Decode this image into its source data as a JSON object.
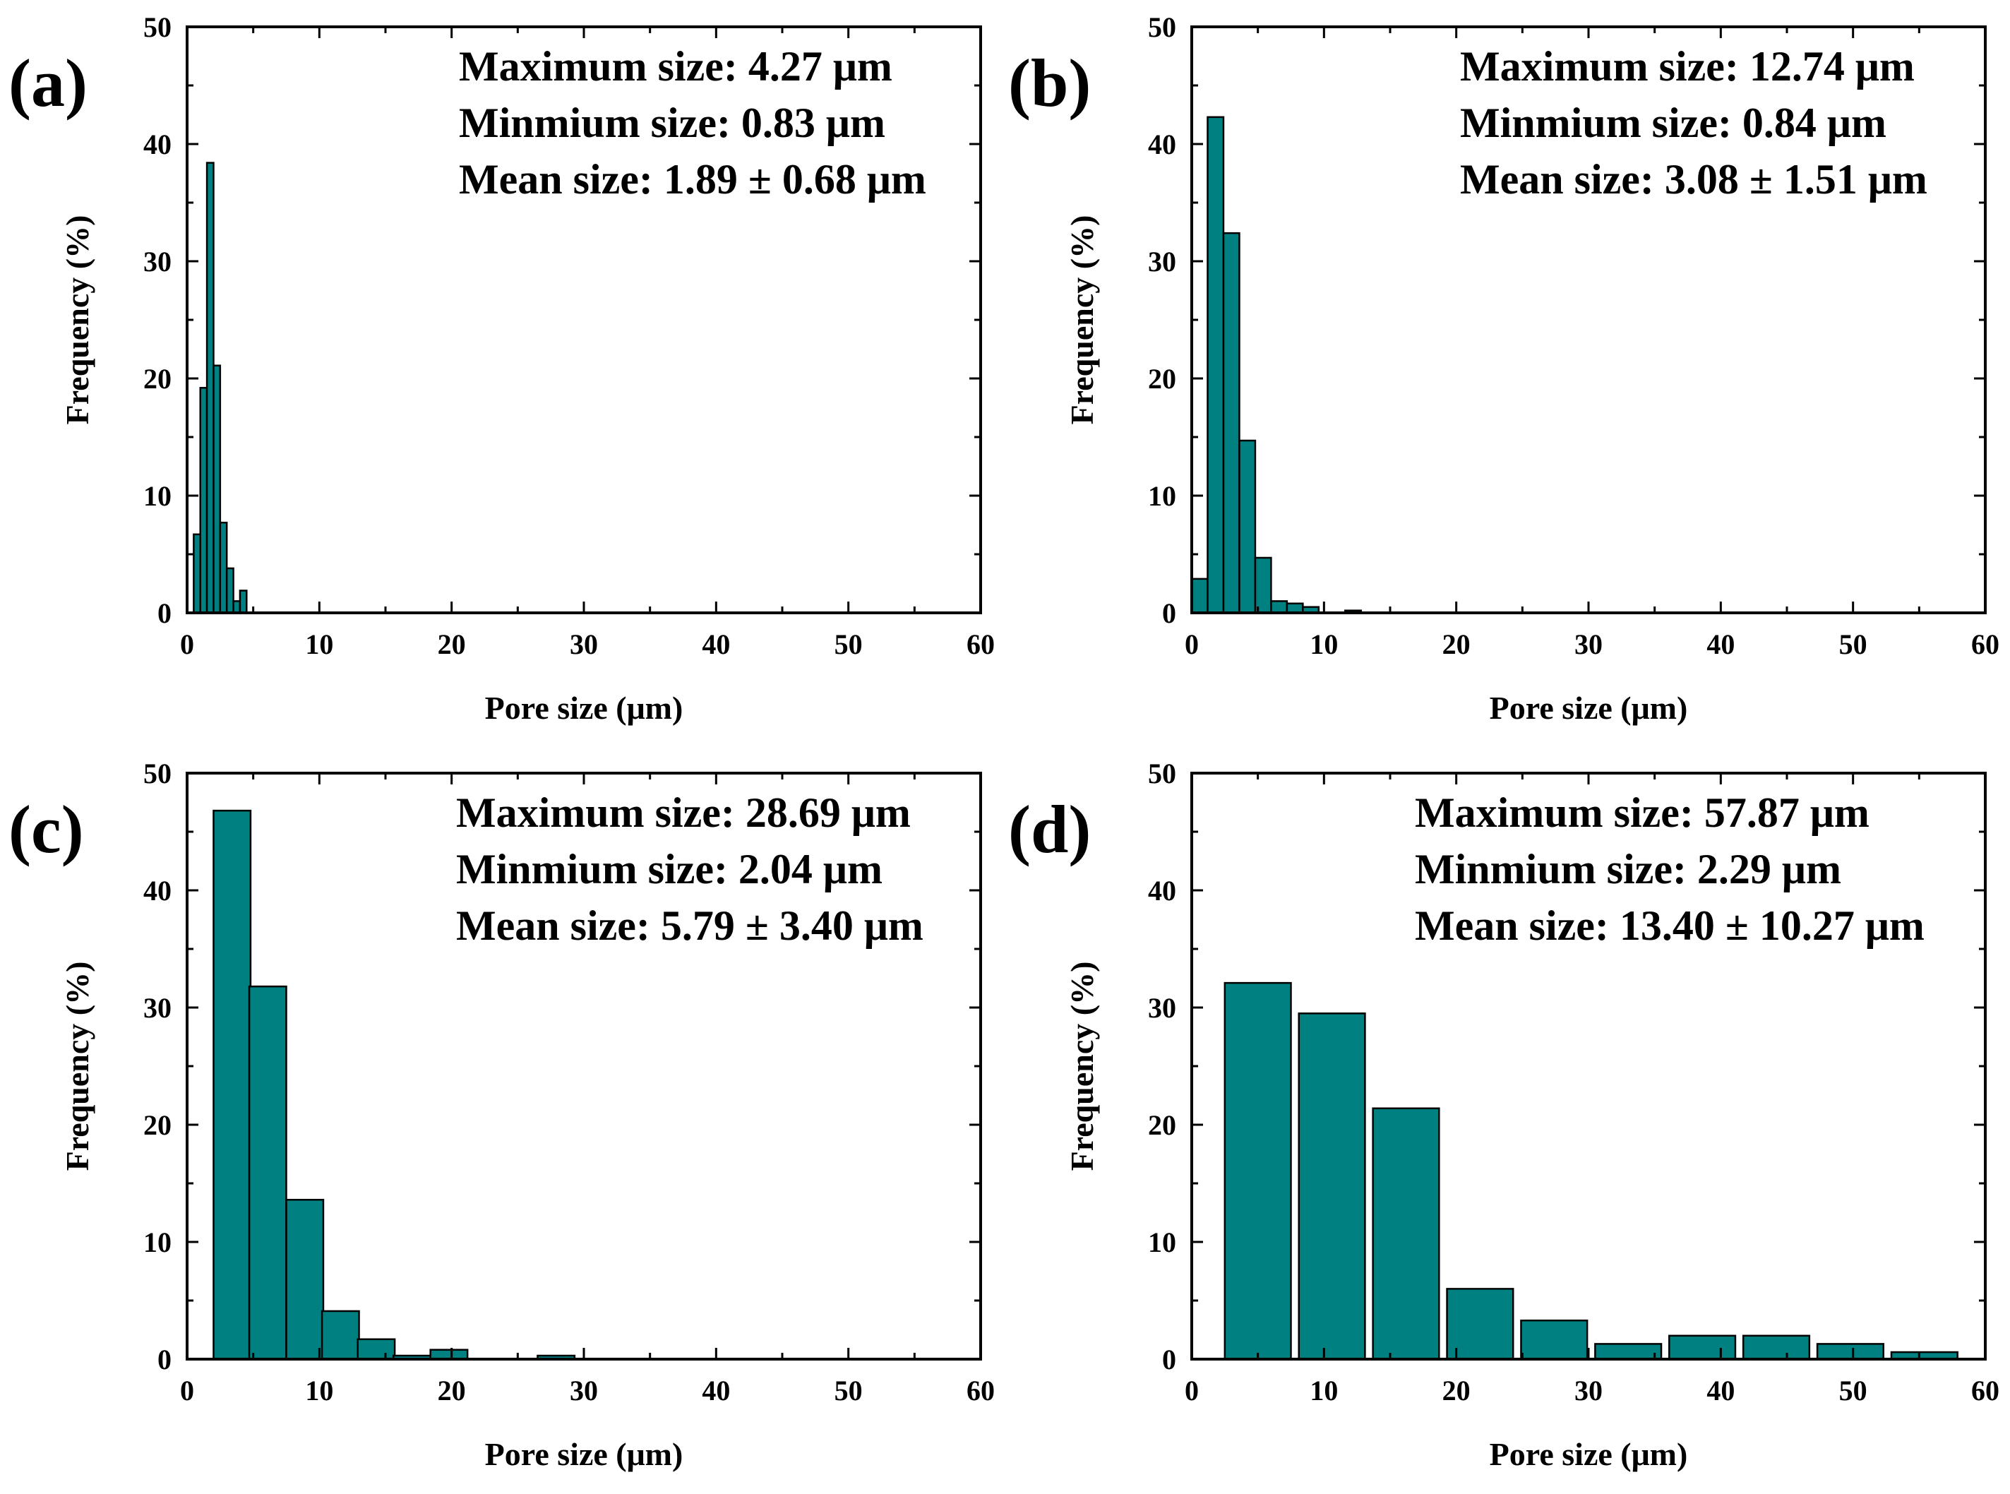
{
  "figure": {
    "description_free": true
  },
  "chart_data": [
    {
      "panel_label": "(a)",
      "type": "bar",
      "xlabel": "Pore size (μm)",
      "ylabel": "Frequency (%)",
      "xlim": [
        0,
        60
      ],
      "ylim": [
        0,
        50
      ],
      "xticks": [
        0,
        10,
        20,
        30,
        40,
        50,
        60
      ],
      "yticks": [
        0,
        10,
        20,
        30,
        40,
        50
      ],
      "bin_width": 0.5,
      "bins": [
        {
          "center": 0.75,
          "value": 6.7
        },
        {
          "center": 1.25,
          "value": 19.2
        },
        {
          "center": 1.75,
          "value": 38.4
        },
        {
          "center": 2.25,
          "value": 21.1
        },
        {
          "center": 2.75,
          "value": 7.7
        },
        {
          "center": 3.25,
          "value": 3.8
        },
        {
          "center": 3.75,
          "value": 1.0
        },
        {
          "center": 4.25,
          "value": 1.9
        }
      ],
      "annotations": [
        "Maximum size: 4.27 μm",
        "Minmium size: 0.83 μm",
        "Mean size: 1.89 ± 0.68 μm"
      ],
      "color": "#008080"
    },
    {
      "panel_label": "(b)",
      "type": "bar",
      "xlabel": "Pore size (μm)",
      "ylabel": "Frequency (%)",
      "xlim": [
        0,
        60
      ],
      "ylim": [
        0,
        50
      ],
      "xticks": [
        0,
        10,
        20,
        30,
        40,
        50,
        60
      ],
      "yticks": [
        0,
        10,
        20,
        30,
        40,
        50
      ],
      "bin_width": 1.2,
      "bins": [
        {
          "center": 0.6,
          "value": 2.9
        },
        {
          "center": 1.8,
          "value": 42.3
        },
        {
          "center": 3.0,
          "value": 32.4
        },
        {
          "center": 4.2,
          "value": 14.7
        },
        {
          "center": 5.4,
          "value": 4.7
        },
        {
          "center": 6.6,
          "value": 1.0
        },
        {
          "center": 7.8,
          "value": 0.8
        },
        {
          "center": 9.0,
          "value": 0.5
        },
        {
          "center": 12.2,
          "value": 0.2
        }
      ],
      "annotations": [
        "Maximum size: 12.74 μm",
        "Minmium size: 0.84 μm",
        "Mean size: 3.08 ± 1.51 μm"
      ],
      "color": "#008080"
    },
    {
      "panel_label": "(c)",
      "type": "bar",
      "xlabel": "Pore size (μm)",
      "ylabel": "Frequency (%)",
      "xlim": [
        0,
        60
      ],
      "ylim": [
        0,
        50
      ],
      "xticks": [
        0,
        10,
        20,
        30,
        40,
        50,
        60
      ],
      "yticks": [
        0,
        10,
        20,
        30,
        40,
        50
      ],
      "bin_width": 2.8,
      "bins": [
        {
          "center": 3.4,
          "value": 46.8
        },
        {
          "center": 6.1,
          "value": 31.8
        },
        {
          "center": 8.9,
          "value": 13.6
        },
        {
          "center": 11.6,
          "value": 4.1
        },
        {
          "center": 14.3,
          "value": 1.7
        },
        {
          "center": 17.0,
          "value": 0.3
        },
        {
          "center": 19.8,
          "value": 0.8
        },
        {
          "center": 27.9,
          "value": 0.3
        }
      ],
      "annotations": [
        "Maximum size: 28.69 μm",
        "Minmium size: 2.04 μm",
        "Mean size: 5.79 ± 3.40 μm"
      ],
      "color": "#008080"
    },
    {
      "panel_label": "(d)",
      "type": "bar",
      "xlabel": "Pore size (μm)",
      "ylabel": "Frequency (%)",
      "xlim": [
        0,
        60
      ],
      "ylim": [
        0,
        50
      ],
      "xticks": [
        0,
        10,
        20,
        30,
        40,
        50,
        60
      ],
      "yticks": [
        0,
        10,
        20,
        30,
        40,
        50
      ],
      "bin_width": 5.0,
      "bins": [
        {
          "center": 5.0,
          "value": 32.1
        },
        {
          "center": 10.6,
          "value": 29.5
        },
        {
          "center": 16.2,
          "value": 21.4
        },
        {
          "center": 21.8,
          "value": 6.0
        },
        {
          "center": 27.4,
          "value": 3.3
        },
        {
          "center": 33.0,
          "value": 1.3
        },
        {
          "center": 38.6,
          "value": 2.0
        },
        {
          "center": 44.2,
          "value": 2.0
        },
        {
          "center": 49.8,
          "value": 1.3
        },
        {
          "center": 55.4,
          "value": 0.6
        }
      ],
      "annotations": [
        "Maximum size: 57.87 μm",
        "Minmium size: 2.29 μm",
        "Mean size: 13.40 ± 10.27 μm"
      ],
      "color": "#008080"
    }
  ]
}
